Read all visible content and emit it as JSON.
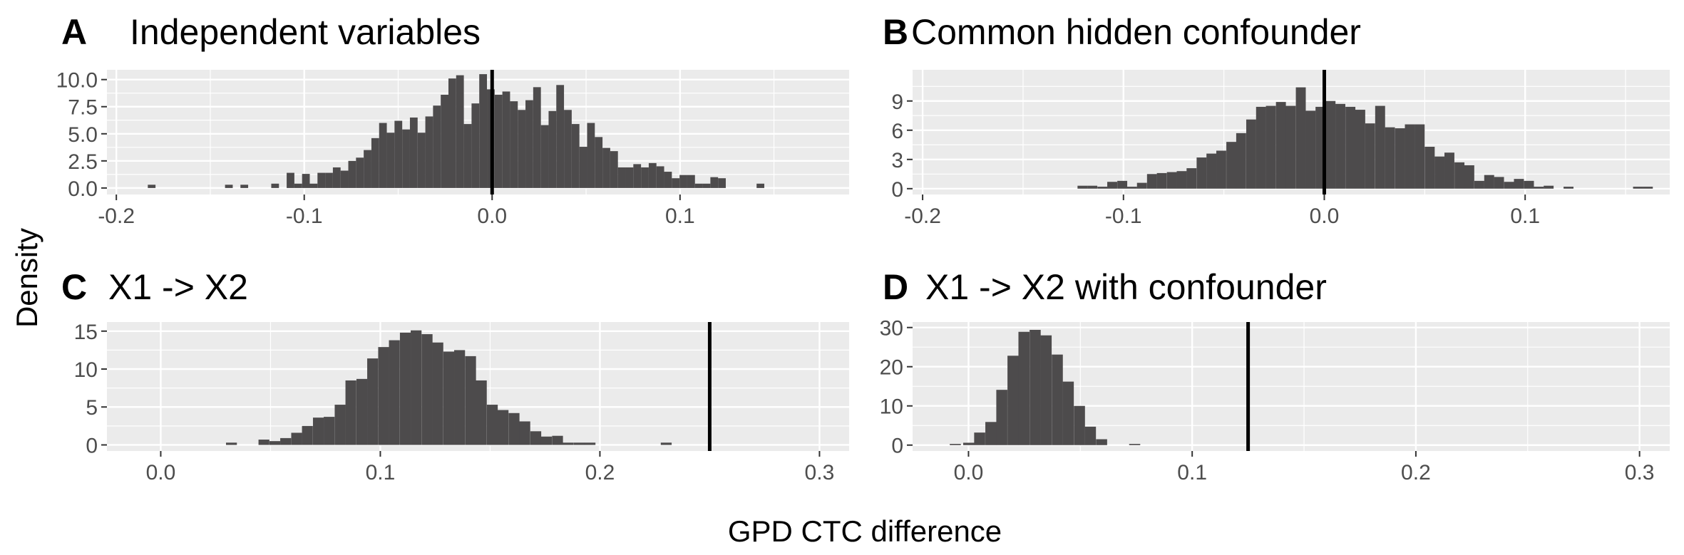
{
  "figure": {
    "ylabel": "Density",
    "xlabel": "GPD CTC difference"
  },
  "colors": {
    "panel_background": "#ebebeb",
    "grid": "#ffffff",
    "bar": "#4d4b4c",
    "reference_line": "#000000",
    "tick_label": "#4d4d4d"
  },
  "chart_data": [
    {
      "type": "bar",
      "letter": "A",
      "title": "Independent variables",
      "xlim": [
        -0.205,
        0.19
      ],
      "ylim": [
        -0.6,
        10.9
      ],
      "x_ticks": [
        -0.2,
        -0.1,
        0.0,
        0.1
      ],
      "x_tick_labels": [
        "-0.2",
        "-0.1",
        "0.0",
        "0.1"
      ],
      "y_ticks": [
        0,
        2.5,
        5,
        7.5,
        10
      ],
      "y_tick_labels": [
        "0.0",
        "2.5",
        "5.0",
        "7.5",
        "10.0"
      ],
      "bin_width": 0.0041,
      "reference_line_x": 0.0,
      "bins_center": [
        -0.1812,
        -0.1401,
        -0.1319,
        -0.1155,
        -0.1073,
        -0.1032,
        -0.0991,
        -0.095,
        -0.0909,
        -0.0868,
        -0.0827,
        -0.0786,
        -0.0745,
        -0.0704,
        -0.0663,
        -0.0622,
        -0.0581,
        -0.054,
        -0.0499,
        -0.0458,
        -0.0417,
        -0.0376,
        -0.0335,
        -0.0294,
        -0.0253,
        -0.0212,
        -0.0171,
        -0.013,
        -0.0089,
        -0.0048,
        -0.0007,
        0.0034,
        0.0075,
        0.0116,
        0.0157,
        0.0198,
        0.0239,
        0.028,
        0.0321,
        0.0362,
        0.0403,
        0.0444,
        0.0485,
        0.0526,
        0.0567,
        0.0608,
        0.0649,
        0.069,
        0.0731,
        0.0772,
        0.0813,
        0.0854,
        0.0895,
        0.0936,
        0.0977,
        0.1018,
        0.1059,
        0.11,
        0.1141,
        0.1182,
        0.1223,
        0.1428
      ],
      "values": [
        0.3,
        0.3,
        0.3,
        0.4,
        1.4,
        0.4,
        1.3,
        0.4,
        1.4,
        1.4,
        1.9,
        1.6,
        2.5,
        2.8,
        3.5,
        4.6,
        6.0,
        5.1,
        6.2,
        5.4,
        6.5,
        5.1,
        6.6,
        7.6,
        8.6,
        10.1,
        10.4,
        5.9,
        7.8,
        10.5,
        9.1,
        8.6,
        8.9,
        8.0,
        7.2,
        8.1,
        9.3,
        5.8,
        7.1,
        9.5,
        7.2,
        5.9,
        3.8,
        6.0,
        4.7,
        3.7,
        3.4,
        1.9,
        1.9,
        2.2,
        1.9,
        2.3,
        2.0,
        1.5,
        0.9,
        1.2,
        1.2,
        0.4,
        0.4,
        1.0,
        0.9,
        0.4
      ]
    },
    {
      "type": "bar",
      "letter": "B",
      "title": "Common hidden confounder",
      "xlim": [
        -0.205,
        0.172
      ],
      "ylim": [
        -0.6,
        12.2
      ],
      "x_ticks": [
        -0.2,
        -0.1,
        0.0,
        0.1
      ],
      "x_tick_labels": [
        "-0.2",
        "-0.1",
        "0.0",
        "0.1"
      ],
      "y_ticks": [
        0,
        3,
        6,
        9
      ],
      "y_tick_labels": [
        "0",
        "3",
        "6",
        "9"
      ],
      "bin_width": 0.00494,
      "reference_line_x": 0.0,
      "bins_center": [
        -0.1204,
        -0.1155,
        -0.1105,
        -0.1056,
        -0.1006,
        -0.0957,
        -0.0908,
        -0.0858,
        -0.0809,
        -0.0759,
        -0.071,
        -0.0661,
        -0.0611,
        -0.0562,
        -0.0513,
        -0.0463,
        -0.0414,
        -0.0364,
        -0.0315,
        -0.0266,
        -0.0216,
        -0.0167,
        -0.0117,
        -0.0068,
        -0.0019,
        0.0031,
        0.008,
        0.013,
        0.0179,
        0.0228,
        0.0278,
        0.0327,
        0.0377,
        0.0426,
        0.0475,
        0.0525,
        0.0574,
        0.0623,
        0.0673,
        0.0722,
        0.0772,
        0.0821,
        0.087,
        0.092,
        0.0969,
        0.1019,
        0.1068,
        0.1117,
        0.1216,
        0.1562,
        0.1611
      ],
      "values": [
        0.3,
        0.3,
        0.2,
        0.7,
        0.8,
        0.2,
        0.6,
        1.5,
        1.6,
        1.7,
        1.8,
        2.1,
        3.2,
        3.6,
        3.9,
        4.8,
        5.7,
        7.1,
        8.4,
        8.5,
        8.9,
        8.5,
        10.4,
        8.0,
        8.4,
        9.0,
        8.7,
        8.4,
        8.1,
        6.7,
        8.5,
        6.3,
        6.2,
        6.6,
        6.6,
        4.3,
        3.3,
        3.7,
        2.7,
        2.4,
        0.8,
        1.4,
        1.2,
        0.7,
        1.0,
        0.8,
        0.2,
        0.3,
        0.2,
        0.2,
        0.2
      ]
    },
    {
      "type": "bar",
      "letter": "C",
      "title": "X1 -> X2",
      "xlim": [
        -0.0245,
        0.3135
      ],
      "ylim": [
        -0.8,
        16.2
      ],
      "x_ticks": [
        0.0,
        0.1,
        0.2,
        0.3
      ],
      "x_tick_labels": [
        "0.0",
        "0.1",
        "0.2",
        "0.3"
      ],
      "y_ticks": [
        0,
        5,
        10,
        15
      ],
      "y_tick_labels": [
        "0",
        "5",
        "10",
        "15"
      ],
      "bin_width": 0.00495,
      "reference_line_x": 0.25,
      "bins_center": [
        0.0322,
        0.047,
        0.052,
        0.0569,
        0.0619,
        0.0668,
        0.0718,
        0.0767,
        0.0817,
        0.0866,
        0.0916,
        0.0965,
        0.1015,
        0.1064,
        0.1114,
        0.1163,
        0.1213,
        0.1262,
        0.1312,
        0.1361,
        0.1411,
        0.146,
        0.151,
        0.1559,
        0.1609,
        0.1658,
        0.1708,
        0.1757,
        0.1807,
        0.1856,
        0.1906,
        0.1955,
        0.2302
      ],
      "values": [
        0.3,
        0.7,
        0.5,
        0.9,
        1.6,
        2.5,
        3.6,
        3.7,
        5.3,
        8.5,
        8.7,
        11.4,
        12.9,
        13.8,
        14.8,
        15.1,
        14.6,
        13.5,
        12.3,
        12.5,
        11.7,
        8.5,
        5.3,
        4.6,
        4.2,
        3.1,
        1.8,
        1.1,
        1.2,
        0.3,
        0.3,
        0.3,
        0.3
      ]
    },
    {
      "type": "bar",
      "letter": "D",
      "title": "X1 -> X2 with confounder",
      "xlim": [
        -0.025,
        0.3135
      ],
      "ylim": [
        -1.5,
        31.4
      ],
      "x_ticks": [
        0.0,
        0.1,
        0.2,
        0.3
      ],
      "x_tick_labels": [
        "0.0",
        "0.1",
        "0.2",
        "0.3"
      ],
      "y_ticks": [
        0,
        10,
        20,
        30
      ],
      "y_tick_labels": [
        "0",
        "10",
        "20",
        "30"
      ],
      "bin_width": 0.00495,
      "reference_line_x": 0.125,
      "bins_center": [
        -0.0059,
        0.0001,
        0.005,
        0.01,
        0.0149,
        0.0199,
        0.0248,
        0.0298,
        0.0347,
        0.0397,
        0.0446,
        0.0496,
        0.0545,
        0.0595,
        0.0743
      ],
      "values": [
        0.3,
        0.6,
        3.2,
        5.9,
        14.1,
        22.8,
        28.9,
        29.4,
        28.0,
        23.1,
        16.2,
        10.0,
        4.7,
        1.5,
        0.3
      ]
    }
  ]
}
